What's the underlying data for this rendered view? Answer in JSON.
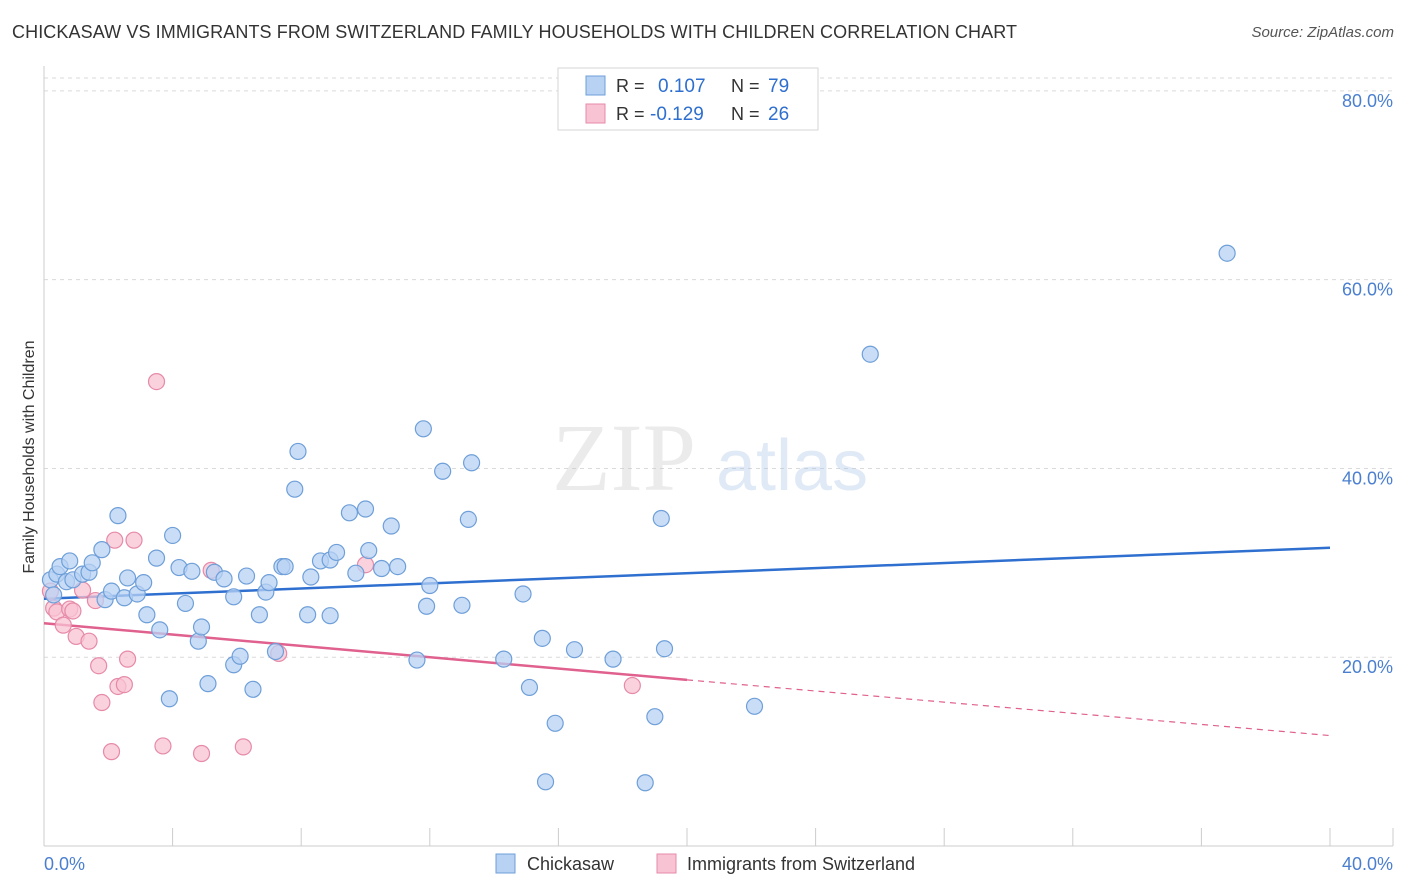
{
  "title": "CHICKASAW VS IMMIGRANTS FROM SWITZERLAND FAMILY HOUSEHOLDS WITH CHILDREN CORRELATION CHART",
  "source": "Source: ZipAtlas.com",
  "watermark": {
    "zip": "ZIP",
    "atlas": "atlas"
  },
  "colors": {
    "blue_fill": "#b8d2f4",
    "blue_stroke": "#6e9fd8",
    "blue_line": "#2e6fcf",
    "pink_fill": "#f8c3d3",
    "pink_stroke": "#e68aa8",
    "pink_line": "#e0608e",
    "axis_text": "#4a7fd0",
    "grid": "#dadada"
  },
  "legend": [
    {
      "r_label": "R =",
      "r_value": "0.107",
      "n_label": "N =",
      "n_value": "79"
    },
    {
      "r_label": "R =",
      "r_value": "-0.129",
      "n_label": "N =",
      "n_value": "26"
    }
  ],
  "bottom_legend": [
    "Chickasaw",
    "Immigrants from Switzerland"
  ],
  "chart_data": {
    "type": "scatter",
    "title": "CHICKASAW VS IMMIGRANTS FROM SWITZERLAND FAMILY HOUSEHOLDS WITH CHILDREN CORRELATION CHART",
    "xlabel": "",
    "ylabel": "Family Households with Children",
    "xlim": [
      0,
      40
    ],
    "ylim": [
      0,
      82
    ],
    "x_tick_labels": [
      "0.0%",
      "40.0%"
    ],
    "y_ticks": [
      20,
      40,
      60,
      80
    ],
    "y_tick_labels": [
      "20.0%",
      "40.0%",
      "60.0%",
      "80.0%"
    ],
    "grid": true,
    "series": [
      {
        "name": "Chickasaw",
        "r": 0.107,
        "n": 79,
        "trend": {
          "x": [
            0,
            40
          ],
          "y": [
            26.2,
            31.6
          ]
        },
        "points": [
          [
            0.2,
            28.2
          ],
          [
            0.3,
            26.6
          ],
          [
            0.4,
            28.8
          ],
          [
            0.5,
            29.6
          ],
          [
            0.7,
            28
          ],
          [
            0.8,
            30.2
          ],
          [
            0.9,
            28.2
          ],
          [
            1.2,
            28.8
          ],
          [
            1.4,
            29.0
          ],
          [
            1.5,
            30.0
          ],
          [
            1.8,
            31.4
          ],
          [
            1.9,
            26.1
          ],
          [
            2.1,
            27.0
          ],
          [
            2.3,
            35.0
          ],
          [
            2.5,
            26.3
          ],
          [
            2.6,
            28.4
          ],
          [
            2.9,
            26.7
          ],
          [
            3.1,
            27.9
          ],
          [
            3.2,
            24.5
          ],
          [
            3.6,
            22.9
          ],
          [
            3.5,
            30.5
          ],
          [
            3.9,
            15.6
          ],
          [
            4.0,
            32.9
          ],
          [
            4.2,
            29.5
          ],
          [
            4.4,
            25.7
          ],
          [
            4.6,
            29.1
          ],
          [
            4.8,
            21.7
          ],
          [
            4.9,
            23.2
          ],
          [
            5.1,
            17.2
          ],
          [
            5.3,
            29.0
          ],
          [
            5.6,
            28.3
          ],
          [
            5.9,
            19.2
          ],
          [
            5.9,
            26.4
          ],
          [
            6.1,
            20.1
          ],
          [
            6.3,
            28.6
          ],
          [
            6.5,
            16.6
          ],
          [
            6.7,
            24.5
          ],
          [
            6.9,
            26.9
          ],
          [
            7.0,
            27.9
          ],
          [
            7.2,
            20.6
          ],
          [
            7.4,
            29.6
          ],
          [
            7.5,
            29.6
          ],
          [
            7.8,
            37.8
          ],
          [
            7.9,
            41.8
          ],
          [
            8.2,
            24.5
          ],
          [
            8.3,
            28.5
          ],
          [
            8.6,
            30.2
          ],
          [
            8.9,
            24.4
          ],
          [
            8.9,
            30.3
          ],
          [
            9.1,
            31.1
          ],
          [
            9.5,
            35.3
          ],
          [
            9.7,
            28.9
          ],
          [
            10.0,
            35.7
          ],
          [
            10.1,
            31.3
          ],
          [
            10.5,
            29.4
          ],
          [
            10.8,
            33.9
          ],
          [
            11.0,
            29.6
          ],
          [
            11.6,
            19.7
          ],
          [
            11.8,
            44.2
          ],
          [
            11.9,
            25.4
          ],
          [
            12.0,
            27.6
          ],
          [
            12.4,
            39.7
          ],
          [
            13.0,
            25.5
          ],
          [
            13.2,
            34.6
          ],
          [
            13.3,
            40.6
          ],
          [
            14.3,
            19.8
          ],
          [
            14.9,
            26.7
          ],
          [
            15.1,
            16.8
          ],
          [
            15.5,
            22.0
          ],
          [
            15.9,
            13.0
          ],
          [
            15.6,
            6.8
          ],
          [
            16.5,
            20.8
          ],
          [
            17.7,
            19.8
          ],
          [
            18.7,
            6.7
          ],
          [
            19.0,
            13.7
          ],
          [
            19.3,
            20.9
          ],
          [
            19.2,
            34.7
          ],
          [
            22.1,
            14.8
          ],
          [
            25.7,
            52.1
          ],
          [
            36.8,
            62.8
          ]
        ]
      },
      {
        "name": "Immigrants from Switzerland",
        "r": -0.129,
        "n": 26,
        "trend": {
          "x": [
            0,
            20
          ],
          "y": [
            23.6,
            17.6
          ]
        },
        "trend_dashed": {
          "x": [
            20,
            40
          ],
          "y": [
            17.6,
            11.7
          ]
        },
        "points": [
          [
            0.2,
            27.0
          ],
          [
            0.3,
            25.2
          ],
          [
            0.4,
            24.8
          ],
          [
            0.6,
            23.4
          ],
          [
            0.8,
            25.1
          ],
          [
            0.9,
            24.9
          ],
          [
            1.0,
            22.2
          ],
          [
            1.2,
            27.1
          ],
          [
            1.4,
            21.7
          ],
          [
            1.6,
            26.0
          ],
          [
            1.7,
            19.1
          ],
          [
            1.8,
            15.2
          ],
          [
            2.1,
            10.0
          ],
          [
            2.2,
            32.4
          ],
          [
            2.3,
            16.9
          ],
          [
            2.5,
            17.1
          ],
          [
            2.6,
            19.8
          ],
          [
            2.8,
            32.4
          ],
          [
            3.5,
            49.2
          ],
          [
            3.7,
            10.6
          ],
          [
            4.9,
            9.8
          ],
          [
            5.2,
            29.2
          ],
          [
            6.2,
            10.5
          ],
          [
            7.3,
            20.4
          ],
          [
            10.0,
            29.8
          ],
          [
            18.3,
            17.0
          ]
        ]
      }
    ]
  }
}
